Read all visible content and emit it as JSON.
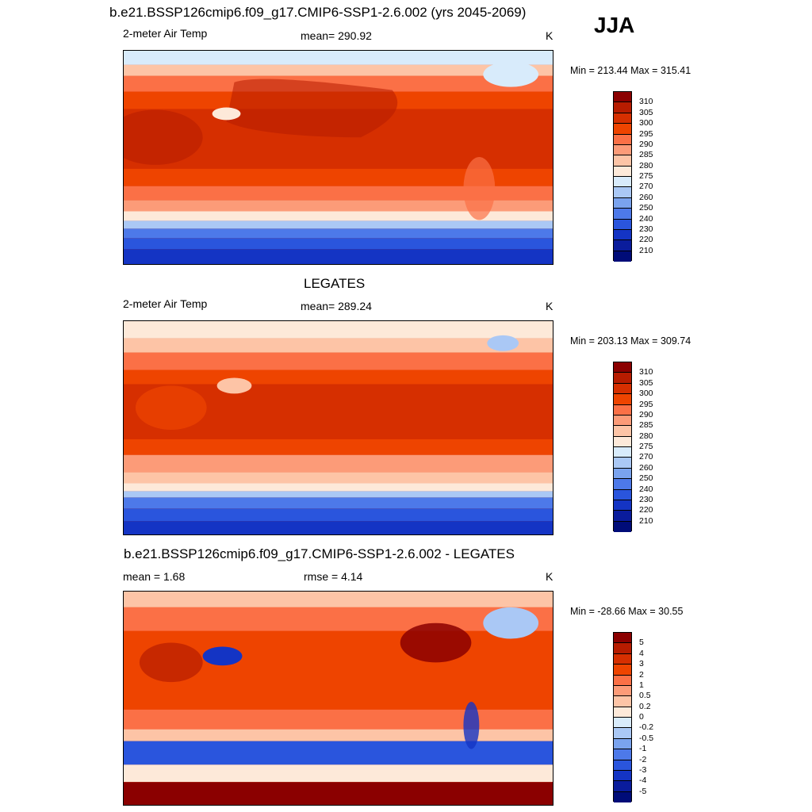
{
  "header": {
    "title": "b.e21.BSSP126cmip6.f09_g17.CMIP6-SSP1-2.6.002 (yrs 2045-2069)",
    "season": "JJA"
  },
  "panels": [
    {
      "id": "model",
      "title": "",
      "left_label": "2-meter Air Temp",
      "center_label": "mean= 290.92",
      "unit": "K",
      "minmax": "Min = 213.44 Max = 315.41",
      "colorbar": {
        "levels": [
          "310",
          "305",
          "300",
          "295",
          "290",
          "285",
          "280",
          "275",
          "270",
          "260",
          "250",
          "240",
          "230",
          "220",
          "210"
        ],
        "colors": [
          "#8b0000",
          "#b71c00",
          "#d62f00",
          "#ee4400",
          "#fb7046",
          "#fc9b78",
          "#fdc4a6",
          "#fde9d9",
          "#d8ebfb",
          "#aac8f5",
          "#7aa3ee",
          "#4d79e9",
          "#2a55dd",
          "#1434c4",
          "#0a1c9c",
          "#000c78"
        ]
      }
    },
    {
      "id": "obs",
      "title": "LEGATES",
      "left_label": "2-meter Air Temp",
      "center_label": "mean= 289.24",
      "unit": "K",
      "minmax": "Min = 203.13 Max = 309.74",
      "colorbar": {
        "levels": [
          "310",
          "305",
          "300",
          "295",
          "290",
          "285",
          "280",
          "275",
          "270",
          "260",
          "250",
          "240",
          "230",
          "220",
          "210"
        ],
        "colors": [
          "#8b0000",
          "#b71c00",
          "#d62f00",
          "#ee4400",
          "#fb7046",
          "#fc9b78",
          "#fdc4a6",
          "#fde9d9",
          "#d8ebfb",
          "#aac8f5",
          "#7aa3ee",
          "#4d79e9",
          "#2a55dd",
          "#1434c4",
          "#0a1c9c",
          "#000c78"
        ]
      }
    },
    {
      "id": "diff",
      "title": "b.e21.BSSP126cmip6.f09_g17.CMIP6-SSP1-2.6.002 - LEGATES",
      "left_label": "mean =   1.68",
      "center_label": "rmse =   4.14",
      "unit": "K",
      "minmax": "Min = -28.66 Max =  30.55",
      "colorbar": {
        "levels": [
          "5",
          "4",
          "3",
          "2",
          "1",
          "0.5",
          "0.2",
          "0",
          "-0.2",
          "-0.5",
          "-1",
          "-2",
          "-3",
          "-4",
          "-5"
        ],
        "colors": [
          "#8b0000",
          "#b71c00",
          "#d62f00",
          "#ee4400",
          "#fb7046",
          "#fc9b78",
          "#fdc4a6",
          "#fde9d9",
          "#d8ebfb",
          "#aac8f5",
          "#7aa3ee",
          "#4d79e9",
          "#2a55dd",
          "#1434c4",
          "#0a1c9c",
          "#000c78"
        ]
      }
    }
  ]
}
